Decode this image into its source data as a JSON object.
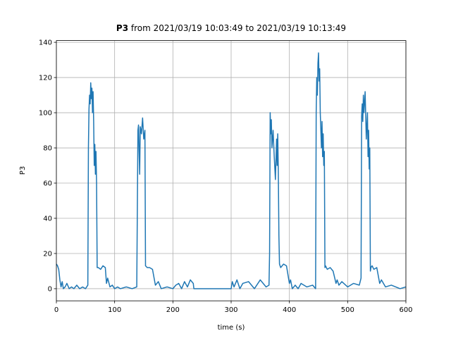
{
  "chart_data": {
    "type": "line",
    "title_name": "P3",
    "title": "from 2021/03/19 10:03:49 to 2021/03/19 10:13:49",
    "xlabel": "time (s)",
    "ylabel": "P3",
    "color": "#1f77b4",
    "grid": true,
    "xlim": [
      0,
      600
    ],
    "ylim": [
      -6.9,
      141
    ],
    "xticks": [
      0,
      100,
      200,
      300,
      400,
      500,
      600
    ],
    "yticks": [
      0,
      20,
      40,
      60,
      80,
      100,
      120,
      140
    ],
    "x": [
      0,
      2,
      4,
      6,
      8,
      10,
      12,
      15,
      18,
      22,
      26,
      30,
      35,
      40,
      45,
      50,
      54,
      55,
      56,
      57,
      58,
      59,
      60,
      61,
      62,
      63,
      64,
      65,
      66,
      67,
      68,
      69,
      70,
      72,
      76,
      80,
      84,
      86,
      88,
      92,
      96,
      100,
      105,
      110,
      120,
      130,
      138,
      140,
      141,
      142,
      143,
      144,
      146,
      148,
      150,
      152,
      153,
      156,
      160,
      165,
      170,
      175,
      180,
      190,
      200,
      205,
      210,
      215,
      220,
      225,
      230,
      235,
      236,
      245,
      260,
      280,
      300,
      302,
      305,
      310,
      315,
      320,
      330,
      340,
      350,
      360,
      365,
      366,
      367,
      368,
      369,
      370,
      372,
      374,
      376,
      378,
      379,
      380,
      381,
      382,
      383,
      385,
      390,
      395,
      400,
      402,
      405,
      410,
      415,
      420,
      430,
      440,
      445,
      446,
      447,
      448,
      449,
      450,
      451,
      452,
      453,
      454,
      455,
      456,
      457,
      458,
      459,
      460,
      461,
      462,
      465,
      470,
      475,
      480,
      482,
      485,
      490,
      500,
      510,
      520,
      523,
      524,
      525,
      526,
      527,
      528,
      530,
      532,
      534,
      535,
      536,
      537,
      538,
      539,
      540,
      542,
      545,
      550,
      555,
      558,
      565,
      575,
      590,
      600
    ],
    "values": [
      14,
      13,
      11,
      5,
      1,
      4,
      0,
      1,
      3,
      0,
      1,
      0,
      2,
      0,
      1,
      0,
      2,
      80,
      102,
      110,
      105,
      117,
      108,
      114,
      100,
      112,
      95,
      70,
      82,
      65,
      78,
      60,
      12,
      12,
      11,
      13,
      12,
      3,
      6,
      1,
      2,
      0,
      1,
      0,
      1,
      0,
      1,
      90,
      93,
      78,
      65,
      92,
      88,
      97,
      85,
      90,
      13,
      12,
      12,
      11,
      2,
      4,
      0,
      1,
      0,
      2,
      3,
      0,
      4,
      1,
      5,
      3,
      0,
      0,
      0,
      0,
      0,
      4,
      1,
      5,
      0,
      3,
      4,
      0,
      5,
      1,
      2,
      20,
      100,
      88,
      96,
      80,
      90,
      75,
      62,
      85,
      70,
      88,
      66,
      30,
      14,
      12,
      14,
      13,
      3,
      5,
      0,
      2,
      0,
      3,
      1,
      2,
      0,
      100,
      120,
      110,
      128,
      134,
      118,
      125,
      100,
      90,
      80,
      95,
      75,
      88,
      70,
      78,
      12,
      13,
      11,
      12,
      10,
      3,
      5,
      2,
      4,
      1,
      3,
      2,
      6,
      98,
      105,
      95,
      110,
      100,
      112,
      85,
      100,
      75,
      90,
      68,
      80,
      10,
      12,
      13,
      11,
      12,
      3,
      5,
      1,
      2,
      0,
      1
    ]
  }
}
